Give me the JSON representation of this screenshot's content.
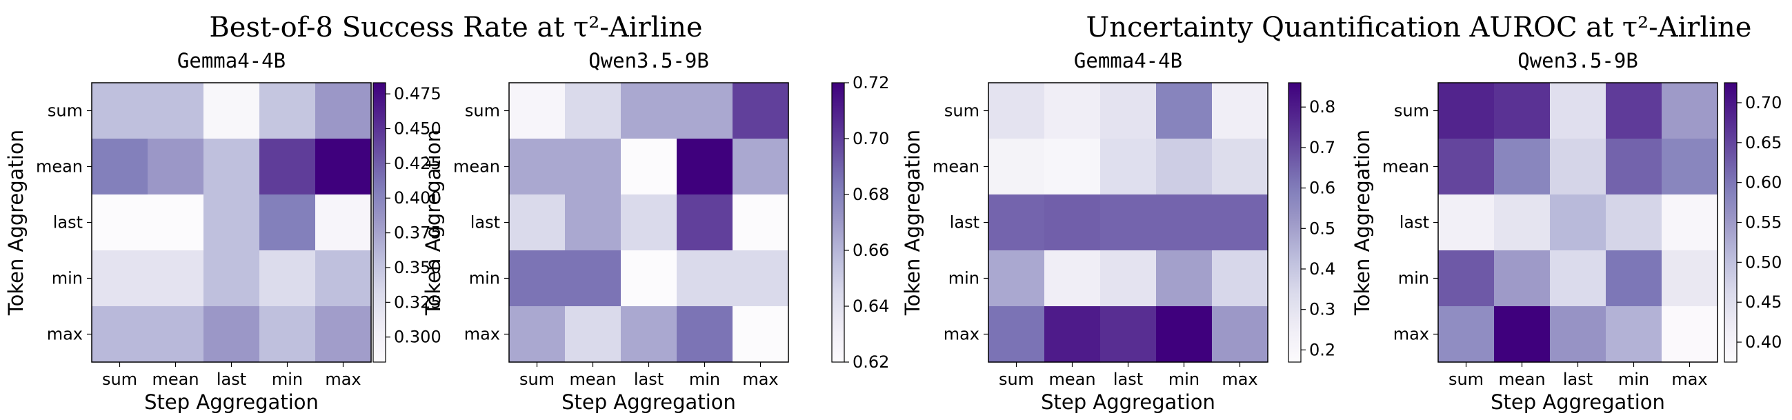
{
  "suptitles": [
    "Best-of-8 Success Rate at τ²-Airline",
    "Uncertainty Quantification AUROC at τ²-Airline"
  ],
  "colormap": {
    "name": "Purples",
    "low": "#fcfbfd",
    "high": "#3f007d"
  },
  "chart_data": [
    {
      "type": "heatmap",
      "group": "Best-of-8 Success Rate at τ²-Airline",
      "title": "Gemma4-4B",
      "xlabel": "Step Aggregation",
      "ylabel": "Token Aggregation",
      "x_categories": [
        "sum",
        "mean",
        "last",
        "min",
        "max"
      ],
      "y_categories": [
        "sum",
        "mean",
        "last",
        "min",
        "max"
      ],
      "values": [
        [
          0.355,
          0.355,
          0.29,
          0.35,
          0.385
        ],
        [
          0.405,
          0.385,
          0.355,
          0.445,
          0.483
        ],
        [
          0.282,
          0.282,
          0.355,
          0.405,
          0.292
        ],
        [
          0.32,
          0.32,
          0.355,
          0.33,
          0.355
        ],
        [
          0.36,
          0.36,
          0.385,
          0.355,
          0.38
        ]
      ],
      "vmin": 0.282,
      "vmax": 0.483,
      "colorbar_ticks": [
        0.3,
        0.325,
        0.35,
        0.375,
        0.4,
        0.425,
        0.45,
        0.475
      ],
      "colorbar_decimals": 3
    },
    {
      "type": "heatmap",
      "group": "Best-of-8 Success Rate at τ²-Airline",
      "title": "Qwen3.5-9B",
      "xlabel": "Step Aggregation",
      "ylabel": "Token Aggregation",
      "x_categories": [
        "sum",
        "mean",
        "last",
        "min",
        "max"
      ],
      "y_categories": [
        "sum",
        "mean",
        "last",
        "min",
        "max"
      ],
      "values": [
        [
          0.625,
          0.645,
          0.665,
          0.665,
          0.7
        ],
        [
          0.665,
          0.665,
          0.62,
          0.72,
          0.665
        ],
        [
          0.645,
          0.665,
          0.645,
          0.7,
          0.62
        ],
        [
          0.685,
          0.685,
          0.62,
          0.645,
          0.645
        ],
        [
          0.665,
          0.645,
          0.665,
          0.685,
          0.62
        ]
      ],
      "vmin": 0.62,
      "vmax": 0.72,
      "colorbar_ticks": [
        0.62,
        0.64,
        0.66,
        0.68,
        0.7,
        0.72
      ],
      "colorbar_decimals": 2
    },
    {
      "type": "heatmap",
      "group": "Uncertainty Quantification AUROC at τ²-Airline",
      "title": "Gemma4-4B",
      "xlabel": "Step Aggregation",
      "ylabel": "Token Aggregation",
      "x_categories": [
        "sum",
        "mean",
        "last",
        "min",
        "max"
      ],
      "y_categories": [
        "sum",
        "mean",
        "last",
        "min",
        "max"
      ],
      "values": [
        [
          0.3,
          0.25,
          0.3,
          0.58,
          0.25
        ],
        [
          0.22,
          0.2,
          0.32,
          0.38,
          0.33
        ],
        [
          0.65,
          0.66,
          0.65,
          0.65,
          0.65
        ],
        [
          0.48,
          0.25,
          0.3,
          0.5,
          0.35
        ],
        [
          0.62,
          0.8,
          0.76,
          0.86,
          0.52
        ]
      ],
      "vmin": 0.17,
      "vmax": 0.86,
      "colorbar_ticks": [
        0.2,
        0.3,
        0.4,
        0.5,
        0.6,
        0.7,
        0.8
      ],
      "colorbar_decimals": 1
    },
    {
      "type": "heatmap",
      "group": "Uncertainty Quantification AUROC at τ²-Airline",
      "title": "Qwen3.5-9B",
      "xlabel": "Step Aggregation",
      "ylabel": "Token Aggregation",
      "x_categories": [
        "sum",
        "mean",
        "last",
        "min",
        "max"
      ],
      "y_categories": [
        "sum",
        "mean",
        "last",
        "min",
        "max"
      ],
      "values": [
        [
          0.685,
          0.67,
          0.45,
          0.66,
          0.55
        ],
        [
          0.65,
          0.58,
          0.47,
          0.62,
          0.58
        ],
        [
          0.41,
          0.44,
          0.51,
          0.47,
          0.39
        ],
        [
          0.63,
          0.55,
          0.46,
          0.6,
          0.43
        ],
        [
          0.57,
          0.725,
          0.56,
          0.52,
          0.38
        ]
      ],
      "vmin": 0.375,
      "vmax": 0.725,
      "colorbar_ticks": [
        0.4,
        0.45,
        0.5,
        0.55,
        0.6,
        0.65,
        0.7
      ],
      "colorbar_decimals": 2
    }
  ]
}
